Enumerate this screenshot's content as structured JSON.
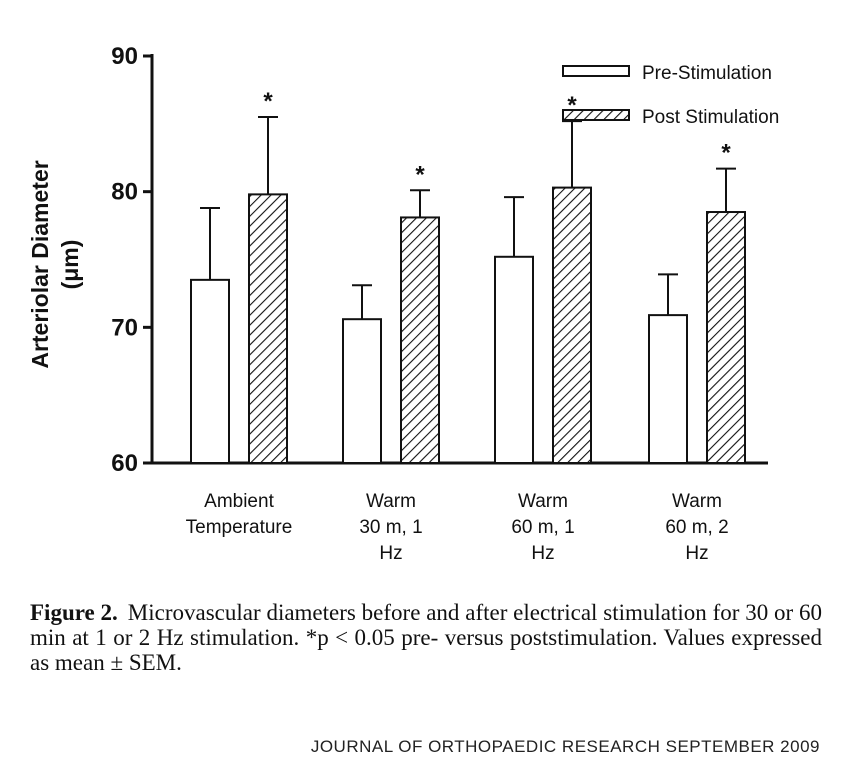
{
  "chart_data": {
    "type": "bar",
    "title": "",
    "xlabel": "",
    "ylabel_lines": [
      "Arteriolar Diameter",
      "(μm)"
    ],
    "ylim": [
      60,
      90
    ],
    "yticks": [
      60,
      70,
      80,
      90
    ],
    "grid": false,
    "legend_position": "top-right",
    "categories": [
      [
        "Ambient",
        "Temperature"
      ],
      [
        "Warm",
        "30 m, 1",
        "Hz"
      ],
      [
        "Warm",
        "60 m, 1",
        "Hz"
      ],
      [
        "Warm",
        "60 m, 2",
        "Hz"
      ]
    ],
    "series": [
      {
        "name": "Pre-Stimulation",
        "fill": "open",
        "values": [
          73.5,
          70.6,
          75.2,
          70.9
        ],
        "errors": [
          5.3,
          2.5,
          4.4,
          3.0
        ]
      },
      {
        "name": "Post Stimulation",
        "fill": "hatched",
        "values": [
          79.8,
          78.1,
          80.3,
          78.5
        ],
        "errors": [
          5.7,
          2.0,
          4.9,
          3.2
        ]
      }
    ],
    "significance_marker": "*",
    "significant": [
      [
        false,
        true
      ],
      [
        false,
        true
      ],
      [
        false,
        true
      ],
      [
        false,
        true
      ]
    ]
  },
  "caption": {
    "lead": "Figure 2.",
    "text": "Microvascular diameters before and after electrical stimulation for 30 or 60 min at 1 or 2 Hz stimulation. *p < 0.05 pre- versus poststimulation. Values expressed as mean ± SEM."
  },
  "footer": "JOURNAL OF ORTHOPAEDIC RESEARCH SEPTEMBER 2009",
  "colors": {
    "ink": "#111111",
    "background": "#ffffff"
  }
}
